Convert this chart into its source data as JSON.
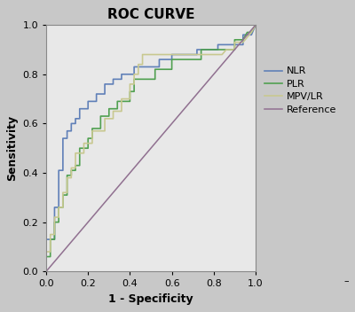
{
  "title": "ROC CURVE",
  "xlabel": "1 - Specificity",
  "ylabel": "Sensitivity",
  "xlim": [
    0.0,
    1.0
  ],
  "ylim": [
    0.0,
    1.0
  ],
  "xticks": [
    0.0,
    0.2,
    0.4,
    0.6,
    0.8,
    1.0
  ],
  "yticks": [
    0.0,
    0.2,
    0.4,
    0.6,
    0.8,
    1.0
  ],
  "fig_bg_color": "#c8c8c8",
  "plot_bg_color": "#e8e8e8",
  "title_fontsize": 11,
  "label_fontsize": 9,
  "tick_fontsize": 8,
  "legend_fontsize": 8,
  "nlr_color": "#6080b8",
  "plr_color": "#50a050",
  "mpvlr_color": "#c8c890",
  "ref_color": "#907090",
  "nlr_points": [
    [
      0.0,
      0.0
    ],
    [
      0.0,
      0.13
    ],
    [
      0.04,
      0.13
    ],
    [
      0.04,
      0.26
    ],
    [
      0.06,
      0.26
    ],
    [
      0.06,
      0.41
    ],
    [
      0.08,
      0.41
    ],
    [
      0.08,
      0.54
    ],
    [
      0.1,
      0.54
    ],
    [
      0.1,
      0.57
    ],
    [
      0.12,
      0.57
    ],
    [
      0.12,
      0.6
    ],
    [
      0.14,
      0.6
    ],
    [
      0.14,
      0.62
    ],
    [
      0.16,
      0.62
    ],
    [
      0.16,
      0.66
    ],
    [
      0.18,
      0.66
    ],
    [
      0.2,
      0.66
    ],
    [
      0.2,
      0.69
    ],
    [
      0.22,
      0.69
    ],
    [
      0.24,
      0.69
    ],
    [
      0.24,
      0.72
    ],
    [
      0.26,
      0.72
    ],
    [
      0.28,
      0.72
    ],
    [
      0.28,
      0.76
    ],
    [
      0.3,
      0.76
    ],
    [
      0.32,
      0.76
    ],
    [
      0.32,
      0.78
    ],
    [
      0.34,
      0.78
    ],
    [
      0.36,
      0.78
    ],
    [
      0.36,
      0.8
    ],
    [
      0.38,
      0.8
    ],
    [
      0.4,
      0.8
    ],
    [
      0.42,
      0.8
    ],
    [
      0.42,
      0.83
    ],
    [
      0.44,
      0.83
    ],
    [
      0.46,
      0.83
    ],
    [
      0.48,
      0.83
    ],
    [
      0.5,
      0.83
    ],
    [
      0.52,
      0.83
    ],
    [
      0.54,
      0.83
    ],
    [
      0.54,
      0.86
    ],
    [
      0.56,
      0.86
    ],
    [
      0.58,
      0.86
    ],
    [
      0.6,
      0.86
    ],
    [
      0.6,
      0.88
    ],
    [
      0.62,
      0.88
    ],
    [
      0.64,
      0.88
    ],
    [
      0.66,
      0.88
    ],
    [
      0.68,
      0.88
    ],
    [
      0.7,
      0.88
    ],
    [
      0.72,
      0.88
    ],
    [
      0.72,
      0.9
    ],
    [
      0.74,
      0.9
    ],
    [
      0.76,
      0.9
    ],
    [
      0.78,
      0.9
    ],
    [
      0.8,
      0.9
    ],
    [
      0.82,
      0.9
    ],
    [
      0.82,
      0.92
    ],
    [
      0.84,
      0.92
    ],
    [
      0.86,
      0.92
    ],
    [
      0.88,
      0.92
    ],
    [
      0.9,
      0.92
    ],
    [
      0.92,
      0.92
    ],
    [
      0.94,
      0.92
    ],
    [
      0.94,
      0.96
    ],
    [
      0.96,
      0.96
    ],
    [
      0.98,
      0.96
    ],
    [
      1.0,
      1.0
    ]
  ],
  "plr_points": [
    [
      0.0,
      0.0
    ],
    [
      0.0,
      0.06
    ],
    [
      0.02,
      0.06
    ],
    [
      0.02,
      0.13
    ],
    [
      0.04,
      0.13
    ],
    [
      0.04,
      0.2
    ],
    [
      0.06,
      0.2
    ],
    [
      0.06,
      0.26
    ],
    [
      0.08,
      0.26
    ],
    [
      0.08,
      0.31
    ],
    [
      0.1,
      0.31
    ],
    [
      0.1,
      0.39
    ],
    [
      0.12,
      0.39
    ],
    [
      0.12,
      0.41
    ],
    [
      0.14,
      0.41
    ],
    [
      0.14,
      0.43
    ],
    [
      0.16,
      0.43
    ],
    [
      0.16,
      0.5
    ],
    [
      0.18,
      0.5
    ],
    [
      0.2,
      0.5
    ],
    [
      0.2,
      0.54
    ],
    [
      0.22,
      0.54
    ],
    [
      0.22,
      0.58
    ],
    [
      0.24,
      0.58
    ],
    [
      0.26,
      0.58
    ],
    [
      0.26,
      0.63
    ],
    [
      0.28,
      0.63
    ],
    [
      0.3,
      0.63
    ],
    [
      0.3,
      0.66
    ],
    [
      0.32,
      0.66
    ],
    [
      0.34,
      0.66
    ],
    [
      0.34,
      0.69
    ],
    [
      0.36,
      0.69
    ],
    [
      0.38,
      0.69
    ],
    [
      0.4,
      0.69
    ],
    [
      0.4,
      0.73
    ],
    [
      0.42,
      0.73
    ],
    [
      0.42,
      0.78
    ],
    [
      0.44,
      0.78
    ],
    [
      0.46,
      0.78
    ],
    [
      0.48,
      0.78
    ],
    [
      0.5,
      0.78
    ],
    [
      0.52,
      0.78
    ],
    [
      0.52,
      0.82
    ],
    [
      0.54,
      0.82
    ],
    [
      0.56,
      0.82
    ],
    [
      0.58,
      0.82
    ],
    [
      0.6,
      0.82
    ],
    [
      0.6,
      0.86
    ],
    [
      0.62,
      0.86
    ],
    [
      0.64,
      0.86
    ],
    [
      0.66,
      0.86
    ],
    [
      0.68,
      0.86
    ],
    [
      0.7,
      0.86
    ],
    [
      0.72,
      0.86
    ],
    [
      0.74,
      0.86
    ],
    [
      0.74,
      0.9
    ],
    [
      0.76,
      0.9
    ],
    [
      0.78,
      0.9
    ],
    [
      0.8,
      0.9
    ],
    [
      0.82,
      0.9
    ],
    [
      0.84,
      0.9
    ],
    [
      0.86,
      0.9
    ],
    [
      0.88,
      0.9
    ],
    [
      0.9,
      0.9
    ],
    [
      0.9,
      0.94
    ],
    [
      0.92,
      0.94
    ],
    [
      0.94,
      0.94
    ],
    [
      0.96,
      0.97
    ],
    [
      0.98,
      0.97
    ],
    [
      1.0,
      1.0
    ]
  ],
  "mpvlr_points": [
    [
      0.0,
      0.0
    ],
    [
      0.0,
      0.08
    ],
    [
      0.02,
      0.08
    ],
    [
      0.02,
      0.15
    ],
    [
      0.04,
      0.15
    ],
    [
      0.04,
      0.22
    ],
    [
      0.06,
      0.22
    ],
    [
      0.06,
      0.26
    ],
    [
      0.08,
      0.26
    ],
    [
      0.08,
      0.32
    ],
    [
      0.1,
      0.32
    ],
    [
      0.1,
      0.38
    ],
    [
      0.12,
      0.38
    ],
    [
      0.12,
      0.42
    ],
    [
      0.14,
      0.42
    ],
    [
      0.14,
      0.48
    ],
    [
      0.16,
      0.48
    ],
    [
      0.18,
      0.48
    ],
    [
      0.18,
      0.52
    ],
    [
      0.2,
      0.52
    ],
    [
      0.22,
      0.52
    ],
    [
      0.22,
      0.57
    ],
    [
      0.24,
      0.57
    ],
    [
      0.26,
      0.57
    ],
    [
      0.28,
      0.57
    ],
    [
      0.28,
      0.62
    ],
    [
      0.3,
      0.62
    ],
    [
      0.32,
      0.62
    ],
    [
      0.32,
      0.65
    ],
    [
      0.34,
      0.65
    ],
    [
      0.36,
      0.65
    ],
    [
      0.36,
      0.7
    ],
    [
      0.38,
      0.7
    ],
    [
      0.4,
      0.7
    ],
    [
      0.4,
      0.76
    ],
    [
      0.42,
      0.76
    ],
    [
      0.42,
      0.8
    ],
    [
      0.44,
      0.8
    ],
    [
      0.44,
      0.84
    ],
    [
      0.46,
      0.84
    ],
    [
      0.46,
      0.88
    ],
    [
      0.48,
      0.88
    ],
    [
      0.5,
      0.88
    ],
    [
      0.52,
      0.88
    ],
    [
      0.54,
      0.88
    ],
    [
      0.56,
      0.88
    ],
    [
      0.58,
      0.88
    ],
    [
      0.6,
      0.88
    ],
    [
      0.62,
      0.88
    ],
    [
      0.64,
      0.88
    ],
    [
      0.66,
      0.88
    ],
    [
      0.68,
      0.88
    ],
    [
      0.7,
      0.88
    ],
    [
      0.72,
      0.88
    ],
    [
      0.74,
      0.88
    ],
    [
      0.76,
      0.88
    ],
    [
      0.78,
      0.88
    ],
    [
      0.8,
      0.88
    ],
    [
      0.82,
      0.88
    ],
    [
      0.84,
      0.88
    ],
    [
      0.86,
      0.9
    ],
    [
      0.88,
      0.9
    ],
    [
      0.9,
      0.9
    ],
    [
      0.9,
      0.93
    ],
    [
      0.92,
      0.93
    ],
    [
      0.94,
      0.93
    ],
    [
      0.96,
      0.95
    ],
    [
      0.98,
      0.97
    ],
    [
      1.0,
      1.0
    ]
  ],
  "legend_entries": [
    "NLR",
    "PLR",
    "MPV/LR",
    "Reference"
  ]
}
